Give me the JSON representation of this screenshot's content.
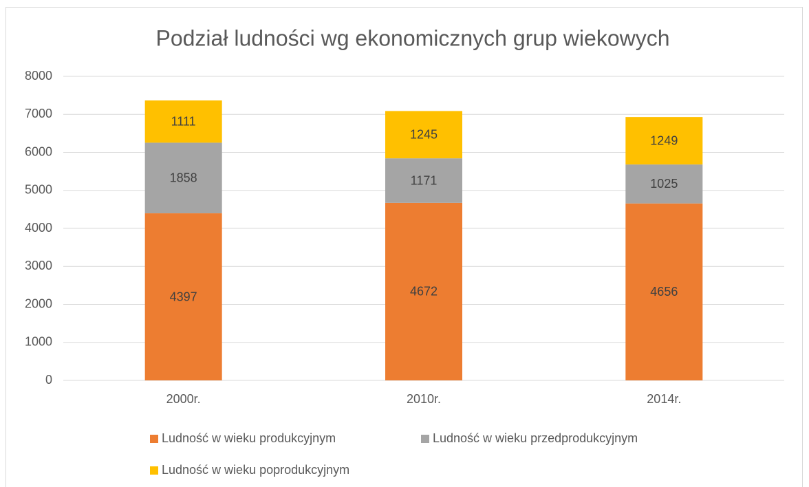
{
  "chart_data": {
    "type": "stacked_bar",
    "title": "Podział ludności wg ekonomicznych grup wiekowych",
    "categories": [
      "2000r.",
      "2010r.",
      "2014r."
    ],
    "series": [
      {
        "name": "Ludność w wieku produkcyjnym",
        "color": "#ed7d31",
        "values": [
          4397,
          4672,
          4656
        ]
      },
      {
        "name": "Ludność w wieku przedprodukcyjnym",
        "color": "#a5a5a5",
        "values": [
          1858,
          1171,
          1025
        ]
      },
      {
        "name": "Ludność w wieku poprodukcyjnym",
        "color": "#ffc000",
        "values": [
          1111,
          1245,
          1249
        ]
      }
    ],
    "ylim": [
      0,
      8000
    ],
    "yticks": [
      0,
      1000,
      2000,
      3000,
      4000,
      5000,
      6000,
      7000,
      8000
    ],
    "grid": true,
    "legend": "bottom"
  }
}
